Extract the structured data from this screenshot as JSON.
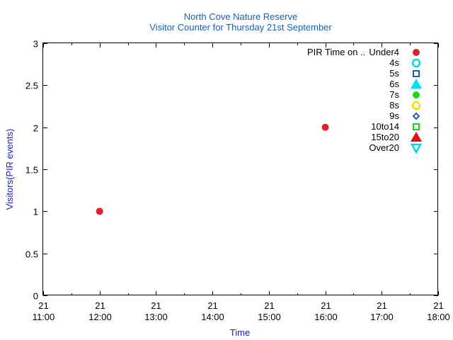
{
  "chart_data": {
    "type": "scatter",
    "title": "North Cove Nature Reserve",
    "subtitle": "Visitor Counter for Thursday 21st September",
    "xlabel": "Time",
    "ylabel": "Visitors(PIR events)",
    "xlim": [
      "21 11:00",
      "21 18:00"
    ],
    "ylim": [
      0,
      3
    ],
    "x_ticks": [
      {
        "day": "21",
        "time": "11:00"
      },
      {
        "day": "21",
        "time": "12:00"
      },
      {
        "day": "21",
        "time": "13:00"
      },
      {
        "day": "21",
        "time": "14:00"
      },
      {
        "day": "21",
        "time": "15:00"
      },
      {
        "day": "21",
        "time": "16:00"
      },
      {
        "day": "21",
        "time": "17:00"
      },
      {
        "day": "21",
        "time": "18:00"
      }
    ],
    "y_ticks": [
      "0",
      "0.5",
      "1",
      "1.5",
      "2",
      "2.5",
      "3"
    ],
    "grid": false,
    "legend_placement": "top-right",
    "legend_title": "PIR Time on ..",
    "series": [
      {
        "name": "Under4",
        "marker": "circle-filled",
        "color": "#e0202a",
        "points": [
          {
            "x": "21 12:00",
            "y": 1
          },
          {
            "x": "21 16:00",
            "y": 2
          }
        ]
      },
      {
        "name": "4s",
        "marker": "circle-open",
        "color": "#00d7e8",
        "points": []
      },
      {
        "name": "5s",
        "marker": "square-open",
        "color": "#1a5fb0",
        "points": []
      },
      {
        "name": "6s",
        "marker": "triangle-filled",
        "color": "#00e0f0",
        "points": []
      },
      {
        "name": "7s",
        "marker": "circle-filled",
        "color": "#18d818",
        "points": []
      },
      {
        "name": "8s",
        "marker": "circle-open",
        "color": "#f0e000",
        "points": []
      },
      {
        "name": "9s",
        "marker": "diamond-open",
        "color": "#1a5fb0",
        "points": []
      },
      {
        "name": "10to14",
        "marker": "square-open",
        "color": "#18d818",
        "points": []
      },
      {
        "name": "15to20",
        "marker": "triangle-filled",
        "color": "#e01010",
        "points": []
      },
      {
        "name": "Over20",
        "marker": "triangle-down-open",
        "color": "#00d7e8",
        "points": []
      }
    ],
    "colors": {
      "title": "#1a5fb0",
      "axis_label": "#1a1ad0",
      "axis": "#000000"
    }
  }
}
